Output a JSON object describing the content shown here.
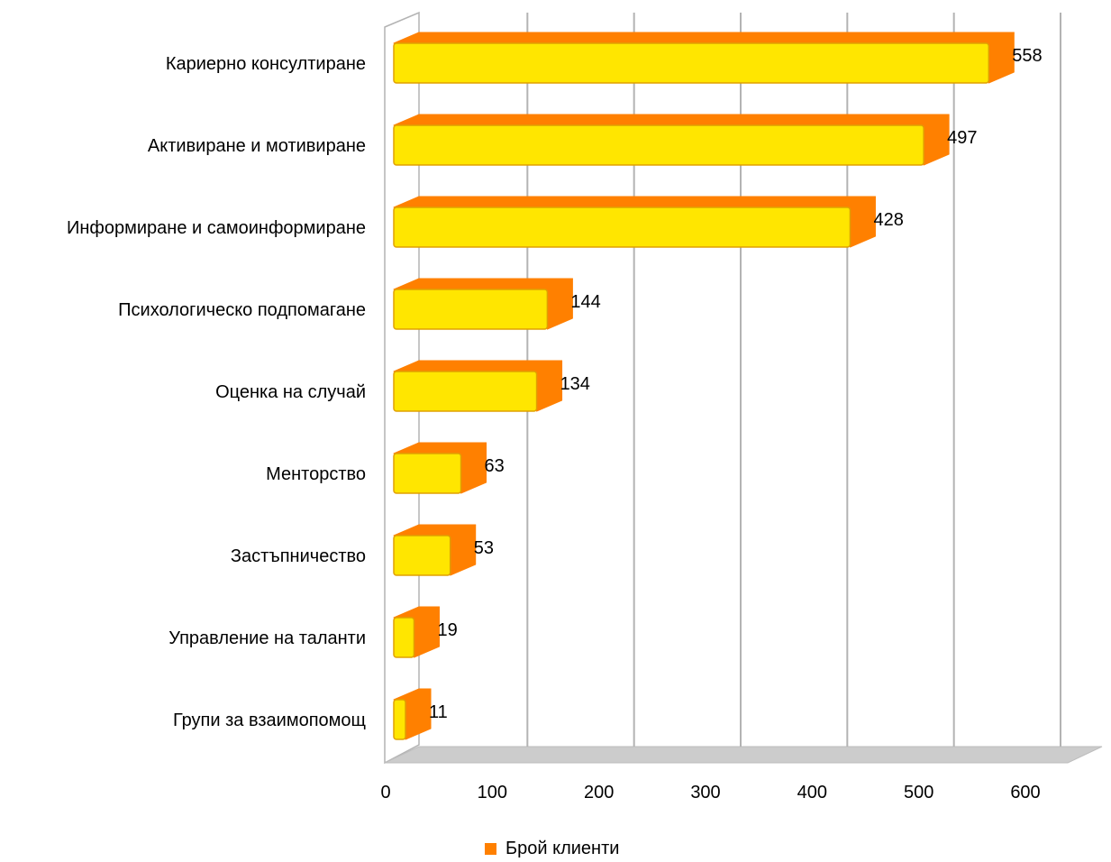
{
  "chart_data": {
    "type": "bar",
    "orientation": "horizontal",
    "three_d": true,
    "categories": [
      "Кариерно консултиране",
      "Активиране и мотивиране",
      "Информиране и самоинформиране",
      "Психологическо подпомагане",
      "Оценка на случай",
      "Менторство",
      "Застъпничество",
      "Управление на таланти",
      "Групи за взаимопомощ"
    ],
    "series": [
      {
        "name": "Брой клиенти",
        "values": [
          558,
          497,
          428,
          144,
          134,
          63,
          53,
          19,
          11
        ]
      }
    ],
    "data_labels": [
      "558",
      "497",
      "428",
      "144",
      "134",
      "63",
      "53",
      "19",
      "11"
    ],
    "xlim": [
      0,
      600
    ],
    "x_ticks": [
      "0",
      "100",
      "200",
      "300",
      "400",
      "500",
      "600"
    ],
    "grid": true,
    "legend_position": "bottom",
    "colors": {
      "bar_front": "#ffe600",
      "bar_side": "#ff8000",
      "bar_edge": "#e0a000",
      "grid": "#b3b3b3",
      "floor": "#cccccc"
    }
  }
}
